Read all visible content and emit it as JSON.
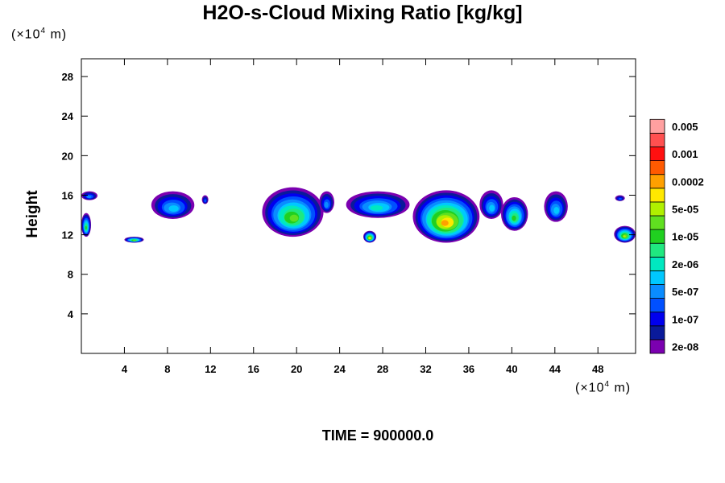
{
  "chart_data": {
    "type": "heatmap",
    "title": "H2O-s-Cloud Mixing Ratio [kg/kg]",
    "ylabel": "Height",
    "y_unit": "(×10",
    "y_unit_exp": "4",
    "y_unit_tail": " m)",
    "x_unit": "(×10",
    "x_unit_exp": "4",
    "x_unit_tail": " m)",
    "xlim": [
      0,
      51.5
    ],
    "ylim": [
      0,
      29.8
    ],
    "x_ticks": [
      4,
      8,
      12,
      16,
      20,
      24,
      28,
      32,
      36,
      40,
      44,
      48
    ],
    "x_tick_labels": [
      "4",
      "8",
      "12",
      "16",
      "20",
      "24",
      "28",
      "32",
      "36",
      "40",
      "44",
      "48"
    ],
    "y_ticks": [
      4,
      8,
      12,
      16,
      20,
      24,
      28
    ],
    "y_tick_labels": [
      "4",
      "8",
      "12",
      "16",
      "20",
      "24",
      "28"
    ],
    "colorbar": {
      "colors": [
        "#7b00b0",
        "#0a1a9a",
        "#0000ee",
        "#0050ff",
        "#0a8cff",
        "#00c8ff",
        "#00e8c0",
        "#20e880",
        "#20d020",
        "#60e020",
        "#b0f000",
        "#ffe800",
        "#ffa000",
        "#ff5a00",
        "#ff1010",
        "#ff5050",
        "#ffa0a0"
      ],
      "labels": [
        "2e-08",
        "1e-07",
        "5e-07",
        "2e-06",
        "1e-05",
        "5e-05",
        "0.0002",
        "0.001",
        "0.005"
      ]
    },
    "cloud_bands": [
      {
        "x": [
          0,
          1.5
        ],
        "y": [
          15.5,
          16.4
        ],
        "level": 4
      },
      {
        "x": [
          0,
          0.9
        ],
        "y": [
          11.8,
          14.2
        ],
        "level": 8
      },
      {
        "x": [
          4,
          5.8
        ],
        "y": [
          11.2,
          11.8
        ],
        "level": 9
      },
      {
        "x": [
          6.5,
          10.5
        ],
        "y": [
          13.6,
          16.4
        ],
        "level": 5
      },
      {
        "x": [
          11.2,
          11.8
        ],
        "y": [
          15.1,
          16.0
        ],
        "level": 3
      },
      {
        "x": [
          16.8,
          22.5
        ],
        "y": [
          11.8,
          16.8
        ],
        "level": 9
      },
      {
        "x": [
          22.1,
          23.5
        ],
        "y": [
          14.2,
          16.4
        ],
        "level": 4
      },
      {
        "x": [
          24.6,
          30.5
        ],
        "y": [
          13.7,
          16.4
        ],
        "level": 6
      },
      {
        "x": [
          26.2,
          27.4
        ],
        "y": [
          11.2,
          12.4
        ],
        "level": 11
      },
      {
        "x": [
          30.8,
          37.0
        ],
        "y": [
          11.2,
          16.5
        ],
        "level": 12
      },
      {
        "x": [
          37.0,
          39.2
        ],
        "y": [
          13.6,
          16.5
        ],
        "level": 5
      },
      {
        "x": [
          39.0,
          41.5
        ],
        "y": [
          12.4,
          15.8
        ],
        "level": 8
      },
      {
        "x": [
          43.0,
          45.2
        ],
        "y": [
          13.3,
          16.4
        ],
        "level": 5
      },
      {
        "x": [
          49.5,
          51.5
        ],
        "y": [
          11.2,
          12.9
        ],
        "level": 10
      },
      {
        "x": [
          49.6,
          50.5
        ],
        "y": [
          15.4,
          16.0
        ],
        "level": 3
      }
    ],
    "footer": "TIME = 900000.0"
  }
}
